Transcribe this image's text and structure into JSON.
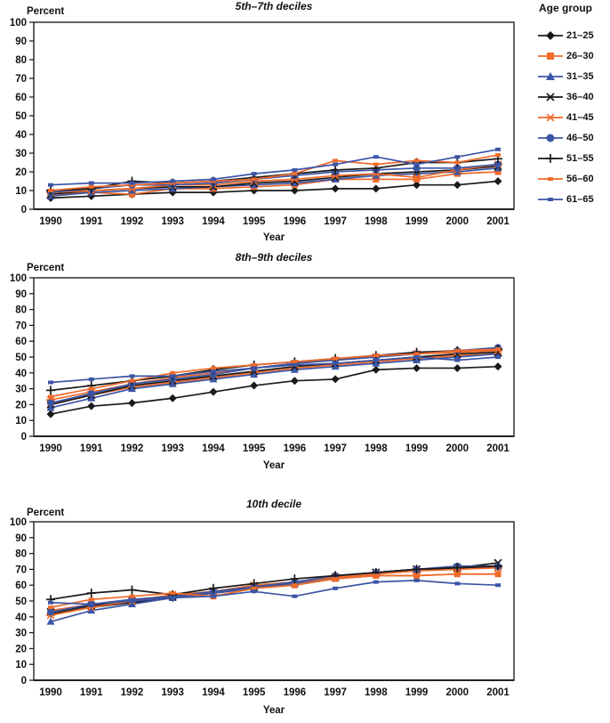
{
  "page": {
    "background": "#ffffff"
  },
  "colors": {
    "black": "#1a1a1a",
    "orange": "#f06b2a",
    "blue": "#3c55a5"
  },
  "legend": {
    "title": "Age group",
    "items": [
      {
        "label": "21–25",
        "marker": "diamond",
        "color": "black"
      },
      {
        "label": "26–30",
        "marker": "square",
        "color": "orange"
      },
      {
        "label": "31–35",
        "marker": "triangle",
        "color": "blue"
      },
      {
        "label": "36–40",
        "marker": "xmark",
        "color": "black"
      },
      {
        "label": "41–45",
        "marker": "asterisk",
        "color": "orange"
      },
      {
        "label": "46–50",
        "marker": "circle",
        "color": "blue"
      },
      {
        "label": "51–55",
        "marker": "plus",
        "color": "black"
      },
      {
        "label": "56–60",
        "marker": "dash",
        "color": "orange"
      },
      {
        "label": "61–65",
        "marker": "dash",
        "color": "blue"
      }
    ]
  },
  "chart_data": [
    {
      "type": "line",
      "title": "5th–7th deciles",
      "ylabel": "Percent",
      "xlabel": "Year",
      "ylim": [
        0,
        100
      ],
      "ytick_step": 10,
      "grid": false,
      "legend_position": "right-of-figure",
      "x": [
        1990,
        1991,
        1992,
        1993,
        1994,
        1995,
        1996,
        1997,
        1998,
        1999,
        2000,
        2001
      ],
      "series": [
        {
          "name": "21–25",
          "marker": "diamond",
          "color": "black",
          "values": [
            6,
            7,
            8,
            9,
            9,
            10,
            10,
            11,
            11,
            13,
            13,
            15
          ]
        },
        {
          "name": "26–30",
          "marker": "square",
          "color": "orange",
          "values": [
            8,
            9,
            8,
            11,
            11,
            12,
            13,
            16,
            16,
            16,
            19,
            20
          ]
        },
        {
          "name": "31–35",
          "marker": "triangle",
          "color": "blue",
          "values": [
            7,
            9,
            10,
            11,
            12,
            13,
            14,
            16,
            18,
            19,
            20,
            22
          ]
        },
        {
          "name": "36–40",
          "marker": "xmark",
          "color": "black",
          "values": [
            8,
            10,
            11,
            12,
            12,
            14,
            15,
            17,
            19,
            20,
            21,
            23
          ]
        },
        {
          "name": "41–45",
          "marker": "asterisk",
          "color": "orange",
          "values": [
            9,
            10,
            11,
            13,
            13,
            15,
            16,
            18,
            19,
            17,
            21,
            24
          ]
        },
        {
          "name": "46–50",
          "marker": "circle",
          "color": "blue",
          "values": [
            9,
            11,
            13,
            13,
            14,
            16,
            18,
            20,
            21,
            22,
            22,
            24
          ]
        },
        {
          "name": "51–55",
          "marker": "plus",
          "color": "black",
          "values": [
            10,
            11,
            15,
            14,
            15,
            17,
            19,
            21,
            22,
            25,
            25,
            27
          ]
        },
        {
          "name": "56–60",
          "marker": "dash",
          "color": "orange",
          "values": [
            10,
            12,
            13,
            14,
            15,
            16,
            19,
            26,
            24,
            26,
            25,
            29
          ]
        },
        {
          "name": "61–65",
          "marker": "dash",
          "color": "blue",
          "values": [
            13,
            14,
            14,
            15,
            16,
            19,
            21,
            24,
            28,
            24,
            28,
            32
          ]
        }
      ]
    },
    {
      "type": "line",
      "title": "8th–9th deciles",
      "ylabel": "Percent",
      "xlabel": "Year",
      "ylim": [
        0,
        100
      ],
      "ytick_step": 10,
      "grid": false,
      "x": [
        1990,
        1991,
        1992,
        1993,
        1994,
        1995,
        1996,
        1997,
        1998,
        1999,
        2000,
        2001
      ],
      "series": [
        {
          "name": "21–25",
          "marker": "diamond",
          "color": "black",
          "values": [
            14,
            19,
            21,
            24,
            28,
            32,
            35,
            36,
            42,
            43,
            43,
            44
          ]
        },
        {
          "name": "26–30",
          "marker": "square",
          "color": "orange",
          "values": [
            20,
            26,
            31,
            34,
            37,
            40,
            43,
            45,
            47,
            49,
            51,
            52
          ]
        },
        {
          "name": "31–35",
          "marker": "triangle",
          "color": "blue",
          "values": [
            18,
            24,
            30,
            33,
            36,
            39,
            42,
            44,
            46,
            48,
            50,
            52
          ]
        },
        {
          "name": "36–40",
          "marker": "xmark",
          "color": "black",
          "values": [
            20,
            26,
            32,
            35,
            38,
            41,
            44,
            46,
            48,
            50,
            52,
            53
          ]
        },
        {
          "name": "41–45",
          "marker": "asterisk",
          "color": "orange",
          "values": [
            23,
            28,
            33,
            37,
            40,
            43,
            46,
            48,
            50,
            52,
            53,
            54
          ]
        },
        {
          "name": "46–50",
          "marker": "circle",
          "color": "blue",
          "values": [
            21,
            27,
            33,
            36,
            39,
            43,
            46,
            48,
            50,
            52,
            54,
            56
          ]
        },
        {
          "name": "51–55",
          "marker": "plus",
          "color": "black",
          "values": [
            29,
            32,
            35,
            38,
            42,
            45,
            47,
            49,
            51,
            53,
            54,
            55
          ]
        },
        {
          "name": "56–60",
          "marker": "dash",
          "color": "orange",
          "values": [
            25,
            30,
            35,
            40,
            43,
            45,
            47,
            49,
            51,
            52,
            54,
            55
          ]
        },
        {
          "name": "61–65",
          "marker": "dash",
          "color": "blue",
          "values": [
            34,
            36,
            38,
            38,
            41,
            43,
            45,
            46,
            48,
            50,
            48,
            50
          ]
        }
      ]
    },
    {
      "type": "line",
      "title": "10th decile",
      "ylabel": "Percent",
      "xlabel": "Year",
      "ylim": [
        0,
        100
      ],
      "ytick_step": 10,
      "grid": false,
      "x": [
        1990,
        1991,
        1992,
        1993,
        1994,
        1995,
        1996,
        1997,
        1998,
        1999,
        2000,
        2001
      ],
      "series": [
        {
          "name": "21–25",
          "marker": "diamond",
          "color": "black",
          "values": [
            42,
            46,
            49,
            52,
            55,
            58,
            62,
            65,
            68,
            70,
            70,
            72
          ]
        },
        {
          "name": "26–30",
          "marker": "square",
          "color": "orange",
          "values": [
            44,
            48,
            51,
            53,
            53,
            58,
            60,
            64,
            66,
            66,
            67,
            67
          ]
        },
        {
          "name": "31–35",
          "marker": "triangle",
          "color": "blue",
          "values": [
            37,
            44,
            48,
            52,
            55,
            58,
            61,
            65,
            67,
            70,
            71,
            72
          ]
        },
        {
          "name": "36–40",
          "marker": "xmark",
          "color": "black",
          "values": [
            43,
            47,
            50,
            53,
            56,
            59,
            62,
            65,
            68,
            70,
            71,
            74
          ]
        },
        {
          "name": "41–45",
          "marker": "asterisk",
          "color": "orange",
          "values": [
            41,
            46,
            50,
            54,
            56,
            60,
            62,
            65,
            67,
            69,
            70,
            71
          ]
        },
        {
          "name": "46–50",
          "marker": "circle",
          "color": "blue",
          "values": [
            43,
            48,
            51,
            53,
            56,
            59,
            62,
            66,
            68,
            70,
            72,
            72
          ]
        },
        {
          "name": "51–55",
          "marker": "plus",
          "color": "black",
          "values": [
            51,
            55,
            57,
            54,
            58,
            61,
            64,
            66,
            68,
            70,
            71,
            72
          ]
        },
        {
          "name": "56–60",
          "marker": "dash",
          "color": "orange",
          "values": [
            46,
            51,
            53,
            55,
            53,
            58,
            60,
            64,
            66,
            66,
            67,
            67
          ]
        },
        {
          "name": "61–65",
          "marker": "dash",
          "color": "blue",
          "values": [
            49,
            48,
            50,
            52,
            53,
            56,
            53,
            58,
            62,
            63,
            61,
            60
          ]
        }
      ]
    }
  ]
}
